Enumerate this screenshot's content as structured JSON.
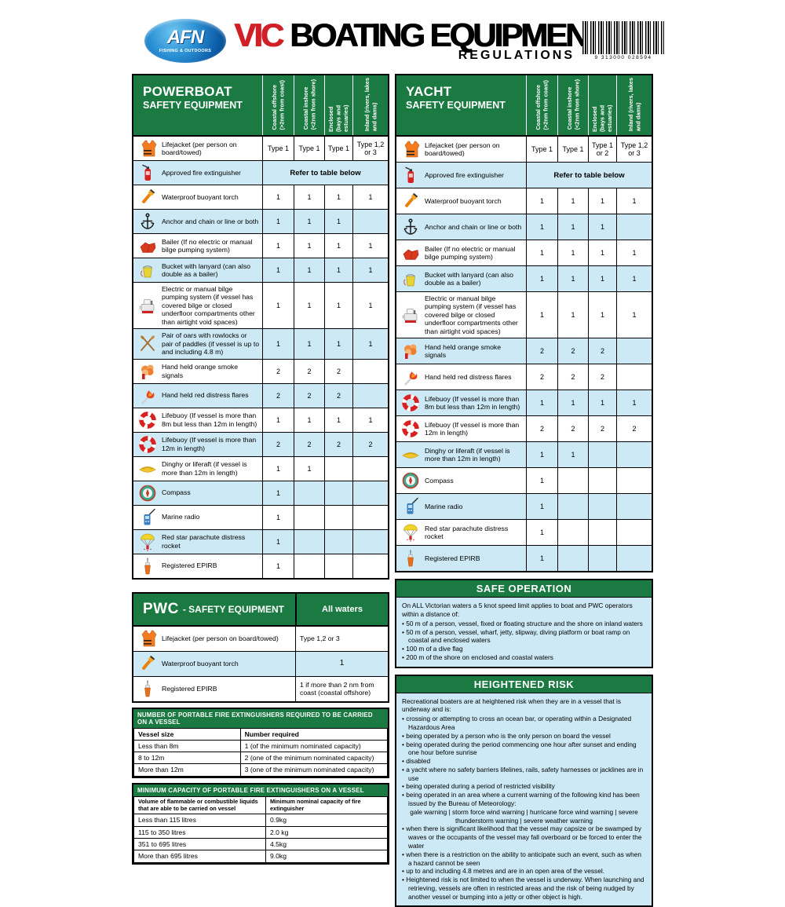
{
  "header": {
    "brand": {
      "name": "AFN",
      "tagline": "FISHING & OUTDOORS"
    },
    "title_prefix": "VIC",
    "title_main": "BOATING EQUIPMENT",
    "title_sub": "REGULATIONS",
    "barcode_text": "9 313000 028594"
  },
  "columns_legend": [
    "Coastal offshore\n(>2nm from coast)",
    "Coastal inshore\n(<2nm from shore)",
    "Enclosed\n(bays and estuaries)",
    "Inland (rivers, lakes\nand dams)"
  ],
  "powerboat": {
    "title_line1": "POWERBOAT",
    "title_line2": "SAFETY EQUIPMENT",
    "rows": [
      {
        "icon": "lifejacket-icon",
        "label": "Lifejacket (per person on board/towed)",
        "values": [
          "Type 1",
          "Type 1",
          "Type 1",
          "Type 1,2 or 3"
        ]
      },
      {
        "icon": "fire-extinguisher-icon",
        "label": "Approved fire extinguisher",
        "span": "Refer to table below"
      },
      {
        "icon": "torch-icon",
        "label": "Waterproof buoyant torch",
        "values": [
          "1",
          "1",
          "1",
          "1"
        ]
      },
      {
        "icon": "anchor-icon",
        "label": "Anchor and chain or line or both",
        "values": [
          "1",
          "1",
          "1",
          ""
        ]
      },
      {
        "icon": "bailer-icon",
        "label": "Bailer (If no electric or manual bilge pumping system)",
        "values": [
          "1",
          "1",
          "1",
          "1"
        ]
      },
      {
        "icon": "bucket-icon",
        "label": "Bucket with lanyard (can also double as a bailer)",
        "values": [
          "1",
          "1",
          "1",
          "1"
        ]
      },
      {
        "icon": "bilge-pump-icon",
        "label": "Electric or manual bilge pumping system (if vessel has covered bilge or closed underfloor compartments other than airtight void spaces)",
        "values": [
          "1",
          "1",
          "1",
          "1"
        ]
      },
      {
        "icon": "oars-icon",
        "label": "Pair of oars with rowlocks or pair of paddles (if vessel is up to and including 4.8 m)",
        "values": [
          "1",
          "1",
          "1",
          "1"
        ]
      },
      {
        "icon": "smoke-signal-icon",
        "label": "Hand held orange smoke signals",
        "values": [
          "2",
          "2",
          "2",
          ""
        ]
      },
      {
        "icon": "flare-icon",
        "label": "Hand held red distress flares",
        "values": [
          "2",
          "2",
          "2",
          ""
        ]
      },
      {
        "icon": "lifebuoy-icon",
        "label": "Lifebuoy (If vessel is more than 8m but less than 12m in length)",
        "values": [
          "1",
          "1",
          "1",
          "1"
        ]
      },
      {
        "icon": "lifebuoy-icon",
        "label": "Lifebuoy (If vessel is more than 12m in length)",
        "values": [
          "2",
          "2",
          "2",
          "2"
        ]
      },
      {
        "icon": "dinghy-icon",
        "label": "Dinghy or liferaft (if vessel is more than 12m in length)",
        "values": [
          "1",
          "1",
          "",
          ""
        ]
      },
      {
        "icon": "compass-icon",
        "label": "Compass",
        "values": [
          "1",
          "",
          "",
          ""
        ]
      },
      {
        "icon": "radio-icon",
        "label": "Marine radio",
        "values": [
          "1",
          "",
          "",
          ""
        ]
      },
      {
        "icon": "parachute-rocket-icon",
        "label": "Red star parachute distress rocket",
        "values": [
          "1",
          "",
          "",
          ""
        ]
      },
      {
        "icon": "epirb-icon",
        "label": "Registered EPIRB",
        "values": [
          "1",
          "",
          "",
          ""
        ]
      }
    ]
  },
  "yacht": {
    "title_line1": "YACHT",
    "title_line2": "SAFETY EQUIPMENT",
    "rows": [
      {
        "icon": "lifejacket-icon",
        "label": "Lifejacket (per person on board/towed)",
        "values": [
          "Type 1",
          "Type 1",
          "Type 1 or 2",
          "Type 1,2 or 3"
        ]
      },
      {
        "icon": "fire-extinguisher-icon",
        "label": "Approved fire extinguisher",
        "span": "Refer to table below"
      },
      {
        "icon": "torch-icon",
        "label": "Waterproof buoyant torch",
        "values": [
          "1",
          "1",
          "1",
          "1"
        ]
      },
      {
        "icon": "anchor-icon",
        "label": "Anchor and chain or line or both",
        "values": [
          "1",
          "1",
          "1",
          ""
        ]
      },
      {
        "icon": "bailer-icon",
        "label": "Bailer (If no electric or manual bilge pumping system)",
        "values": [
          "1",
          "1",
          "1",
          "1"
        ]
      },
      {
        "icon": "bucket-icon",
        "label": "Bucket with lanyard (can also double as a bailer)",
        "values": [
          "1",
          "1",
          "1",
          "1"
        ]
      },
      {
        "icon": "bilge-pump-icon",
        "label": "Electric or manual bilge pumping system (if vessel has covered bilge or closed underfloor compartments other than airtight void spaces)",
        "values": [
          "1",
          "1",
          "1",
          "1"
        ]
      },
      {
        "icon": "smoke-signal-icon",
        "label": "Hand held orange smoke signals",
        "values": [
          "2",
          "2",
          "2",
          ""
        ]
      },
      {
        "icon": "flare-icon",
        "label": "Hand held red distress flares",
        "values": [
          "2",
          "2",
          "2",
          ""
        ]
      },
      {
        "icon": "lifebuoy-icon",
        "label": "Lifebuoy (If vessel is more than 8m but less than 12m in length)",
        "values": [
          "1",
          "1",
          "1",
          "1"
        ]
      },
      {
        "icon": "lifebuoy-icon",
        "label": "Lifebuoy (If vessel is more than 12m in length)",
        "values": [
          "2",
          "2",
          "2",
          "2"
        ]
      },
      {
        "icon": "dinghy-icon",
        "label": "Dinghy or liferaft (if vessel is more than 12m in length)",
        "values": [
          "1",
          "1",
          "",
          ""
        ]
      },
      {
        "icon": "compass-icon",
        "label": "Compass",
        "values": [
          "1",
          "",
          "",
          ""
        ]
      },
      {
        "icon": "radio-icon",
        "label": "Marine radio",
        "values": [
          "1",
          "",
          "",
          ""
        ]
      },
      {
        "icon": "parachute-rocket-icon",
        "label": "Red star parachute distress rocket",
        "values": [
          "1",
          "",
          "",
          ""
        ]
      },
      {
        "icon": "epirb-icon",
        "label": "Registered EPIRB",
        "values": [
          "1",
          "",
          "",
          ""
        ]
      }
    ]
  },
  "pwc": {
    "title_prefix": "PWC",
    "title_rest": "- SAFETY EQUIPMENT",
    "col_header": "All waters",
    "rows": [
      {
        "icon": "lifejacket-icon",
        "label": "Lifejacket (per person on board/towed)",
        "value": "Type 1,2 or 3",
        "align": "left"
      },
      {
        "icon": "torch-icon",
        "label": "Waterproof buoyant torch",
        "value": "1",
        "align": "center"
      },
      {
        "icon": "epirb-icon",
        "label": "Registered EPIRB",
        "value": "1 if more than 2 nm from coast (coastal offshore)",
        "align": "left"
      }
    ]
  },
  "extinguisher_count_table": {
    "title": "NUMBER OF PORTABLE FIRE EXTINGUISHERS REQUIRED TO BE CARRIED ON A VESSEL",
    "headers": [
      "Vessel size",
      "Number required"
    ],
    "rows": [
      [
        "Less than 8m",
        "1 (of the minimum nominated capacity)"
      ],
      [
        "8 to 12m",
        "2 (one of the minimum nominated capacity)"
      ],
      [
        "More than 12m",
        "3 (one of the minimum nominated capacity)"
      ]
    ]
  },
  "extinguisher_capacity_table": {
    "title": "MINIMUM CAPACITY OF PORTABLE FIRE EXTINGUISHERS ON A VESSEL",
    "headers": [
      "Volume of flammable or combustible liquids that are able to be carried on vessel",
      "Minimum nominal capacity of fire extinguisher"
    ],
    "rows": [
      [
        "Less than 115 litres",
        "0.9kg"
      ],
      [
        "115 to 350 litres",
        "2.0 kg"
      ],
      [
        "351 to 695 litres",
        "4.5kg"
      ],
      [
        "More than 695 litres",
        "9.0kg"
      ]
    ]
  },
  "safe_operation": {
    "title": "SAFE OPERATION",
    "intro": "On ALL Victorian waters a 5 knot speed limit applies to boat and PWC operators within a distance of:",
    "bullets": [
      "50 m of a person, vessel, fixed or floating structure and the shore on inland waters",
      "50 m of a person, vessel, wharf, jetty, slipway, diving platform or boat ramp on coastal and enclosed waters",
      "100 m of a dive flag",
      "200 m of the shore on enclosed and coastal waters"
    ]
  },
  "heightened_risk": {
    "title": "HEIGHTENED RISK",
    "intro": "Recreational boaters are at heightened risk when they are in a vessel that is underway and is:",
    "bullets": [
      "crossing or attempting to cross an ocean bar, or operating within a Designated Hazardous Area",
      "being operated by a person who is the only person on board the vessel",
      "being operated during the period commencing one hour after sunset and ending one hour before sunrise",
      "disabled",
      "a yacht where no safety barriers lifelines, rails, safety harnesses or jacklines are in use",
      "being operated during a period of restricted visibility",
      "being operated in an area where a current warning of the following kind has been issued by the Bureau of Meteorology:",
      {
        "text": "gale warning | storm force wind warning | hurricane force wind warning | severe thunderstorm warning | severe weather warning",
        "center": true
      },
      "when there is significant likelihood that the vessel may capsize or be swamped by waves or the occupants of the vessel may fall overboard or be forced to enter the water",
      "when there is a restriction on the ability to anticipate such an event, such as when a hazard cannot be seen",
      "up to and including 4.8 metres and are in an open area of the vessel.",
      "Heightened risk is not limited to when the vessel is underway. When launching and retrieving, vessels are often in restricted areas and the risk of being nudged by another vessel or bumping into a jetty or other object is high."
    ]
  },
  "colors": {
    "green": "#1a7a42",
    "light_blue": "#cde9f6",
    "accent_red": "#d01f26"
  }
}
